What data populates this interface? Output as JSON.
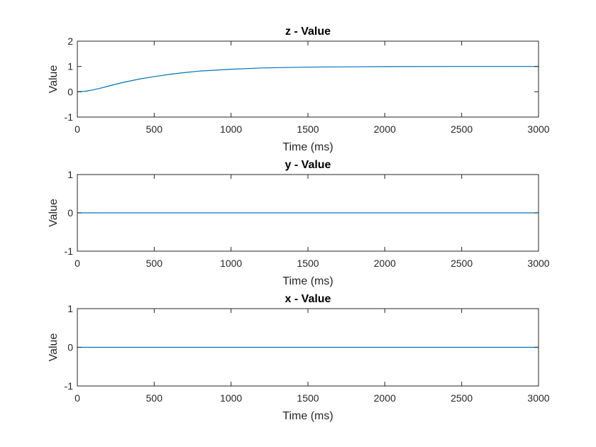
{
  "chart_data": [
    {
      "type": "line",
      "title": "z - Value",
      "xlabel": "Time (ms)",
      "ylabel": "Value",
      "xlim": [
        0,
        3000
      ],
      "ylim": [
        -1,
        2
      ],
      "xticks": [
        0,
        500,
        1000,
        1500,
        2000,
        2500,
        3000
      ],
      "yticks": [
        -1,
        0,
        1,
        2
      ],
      "grid": false,
      "series": [
        {
          "color": "#0072BD",
          "x": [
            0,
            50,
            100,
            150,
            200,
            250,
            300,
            400,
            500,
            600,
            700,
            800,
            1000,
            1200,
            1500,
            2000,
            2500,
            3000
          ],
          "y": [
            0.0,
            0.02,
            0.07,
            0.14,
            0.22,
            0.3,
            0.37,
            0.5,
            0.6,
            0.69,
            0.76,
            0.82,
            0.89,
            0.94,
            0.975,
            0.995,
            1.0,
            1.0
          ]
        }
      ]
    },
    {
      "type": "line",
      "title": "y - Value",
      "xlabel": "Time (ms)",
      "ylabel": "Value",
      "xlim": [
        0,
        3000
      ],
      "ylim": [
        -1,
        1
      ],
      "xticks": [
        0,
        500,
        1000,
        1500,
        2000,
        2500,
        3000
      ],
      "yticks": [
        -1,
        0,
        1
      ],
      "grid": false,
      "series": [
        {
          "color": "#0072BD",
          "x": [
            0,
            3000
          ],
          "y": [
            0,
            0
          ]
        }
      ]
    },
    {
      "type": "line",
      "title": "x - Value",
      "xlabel": "Time (ms)",
      "ylabel": "Value",
      "xlim": [
        0,
        3000
      ],
      "ylim": [
        -1,
        1
      ],
      "xticks": [
        0,
        500,
        1000,
        1500,
        2000,
        2500,
        3000
      ],
      "yticks": [
        -1,
        0,
        1
      ],
      "grid": false,
      "series": [
        {
          "color": "#0072BD",
          "x": [
            0,
            3000
          ],
          "y": [
            0,
            0
          ]
        }
      ]
    }
  ]
}
